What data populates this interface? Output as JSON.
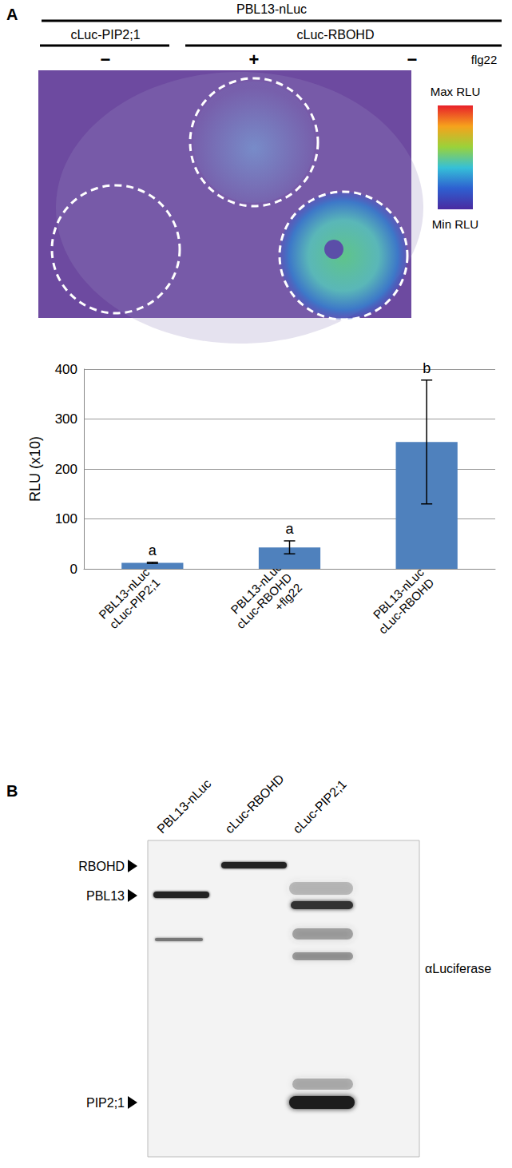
{
  "chart_data": {
    "type": "bar",
    "categories": [
      "PBL13-nLuc\ncLuc-PIP2;1",
      "PBL13-nLuc\ncLuc-RBOHD\n+flg22",
      "PBL13-nLuc\ncLuc-RBOHD"
    ],
    "values": [
      12,
      43,
      254
    ],
    "errors": [
      1,
      13,
      124
    ],
    "letters": [
      "a",
      "a",
      "b"
    ],
    "ylabel": "RLU (x10)",
    "color": "#4f81bd",
    "ylim": [
      0,
      400
    ],
    "yticks": [
      0,
      100,
      200,
      300,
      400
    ],
    "grid": true
  },
  "panel_a": {
    "label": "A",
    "header": "PBL13-nLuc",
    "groups": [
      "cLuc-PIP2;1",
      "cLuc-RBOHD"
    ],
    "treatment": {
      "name": "flg22",
      "states": [
        "−",
        "+",
        "−"
      ]
    },
    "colorbar": {
      "max_label": "Max RLU",
      "min_label": "Min RLU"
    }
  },
  "panel_b": {
    "label": "B",
    "lanes": [
      "PBL13-nLuc",
      "cLuc-RBOHD",
      "cLuc-PIP2;1"
    ],
    "bands": [
      "RBOHD",
      "PBL13",
      "PIP2;1"
    ],
    "antibody": "αLuciferase"
  }
}
